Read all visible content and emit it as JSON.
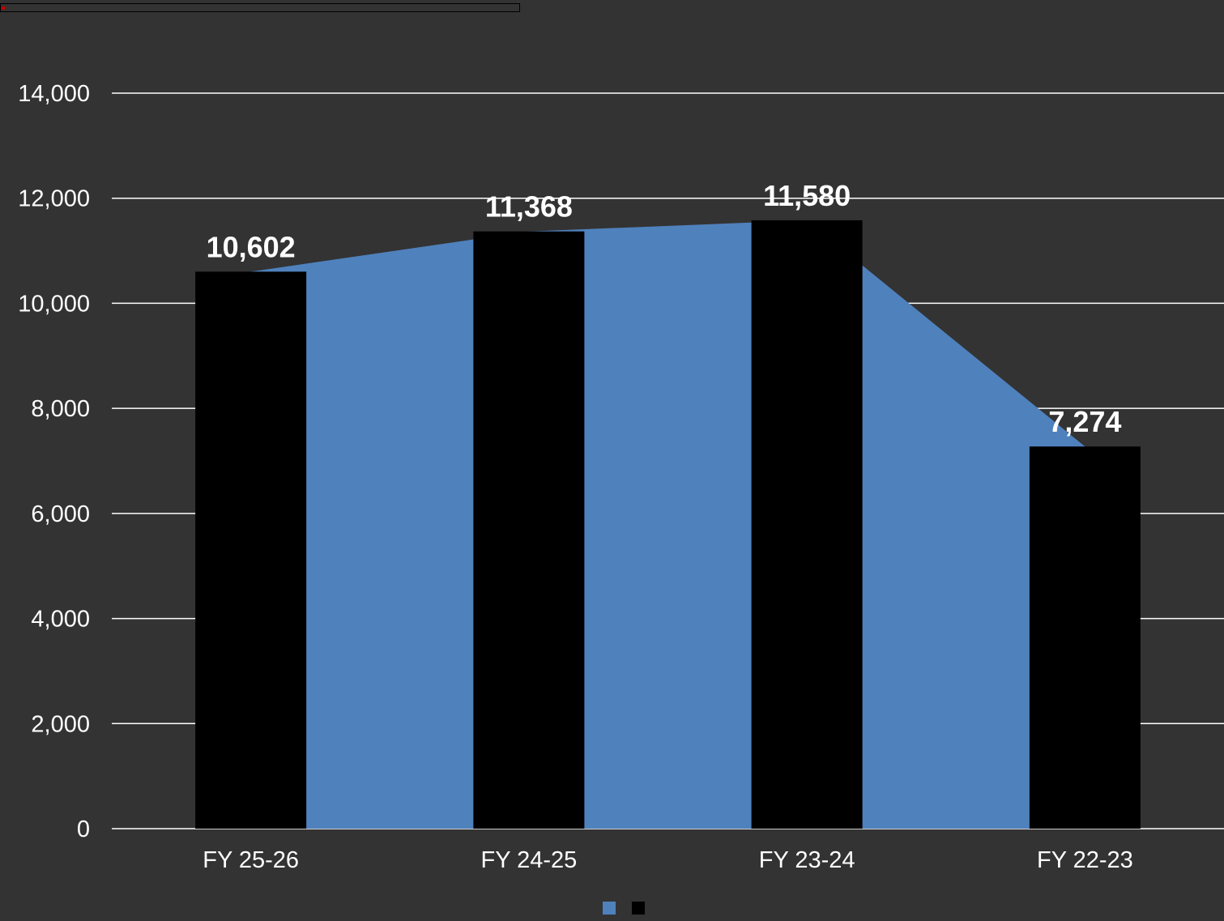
{
  "chart_data": {
    "type": "bar",
    "categories": [
      "FY 25-26",
      "FY 24-25",
      "FY 23-24",
      "FY 22-23"
    ],
    "series": [
      {
        "type": "area",
        "values": [
          10602,
          11368,
          11580,
          7274
        ],
        "color": "#4f81bd"
      },
      {
        "type": "bar",
        "values": [
          10602,
          11368,
          11580,
          7274
        ],
        "color": "#000000"
      }
    ],
    "data_labels": [
      "10,602",
      "11,368",
      "11,580",
      "7,274"
    ],
    "y_ticks": [
      "0",
      "2,000",
      "4,000",
      "6,000",
      "8,000",
      "10,000",
      "12,000",
      "14,000"
    ],
    "ylim": [
      0,
      14000
    ],
    "y_step": 2000,
    "grid": true,
    "gridline_color": "#ffffff",
    "text_color": "#ffffff",
    "background": "#333333",
    "legend_position": "bottom",
    "legend": [
      {
        "color": "#4f81bd"
      },
      {
        "color": "#000000"
      }
    ]
  }
}
